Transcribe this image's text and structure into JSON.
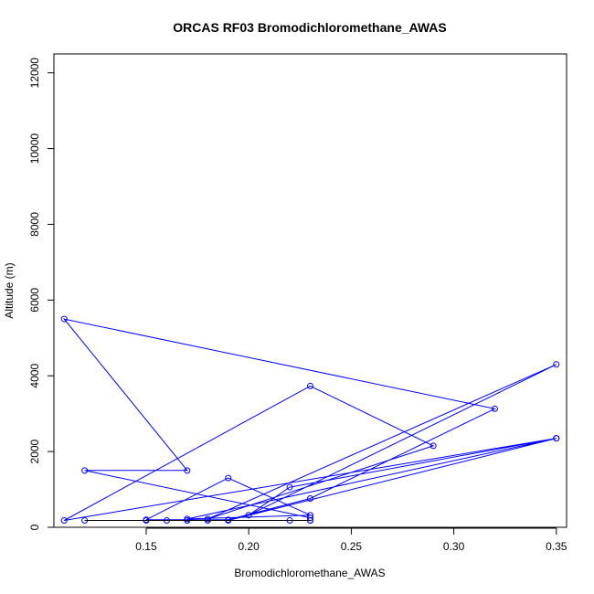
{
  "chart_data": {
    "type": "line",
    "title": "ORCAS RF03 Bromodichloromethane_AWAS",
    "xlabel": "Bromodichloromethane_AWAS",
    "ylabel": "Altitude (m)",
    "xlim": [
      0.105,
      0.355
    ],
    "ylim": [
      0,
      12500
    ],
    "x_ticks": [
      0.15,
      0.2,
      0.25,
      0.3,
      0.35
    ],
    "x_tick_labels": [
      "0.15",
      "0.20",
      "0.25",
      "0.30",
      "0.35"
    ],
    "y_ticks": [
      0,
      2000,
      4000,
      6000,
      8000,
      10000,
      12000
    ],
    "y_tick_labels": [
      "0",
      "2000",
      "4000",
      "6000",
      "8000",
      "10000",
      "12000"
    ],
    "grid": false,
    "series": [
      {
        "color": "#0000ff",
        "marker": "open-circle",
        "points": [
          {
            "x": 0.23,
            "y": 180
          },
          {
            "x": 0.22,
            "y": 180
          },
          {
            "x": 0.23,
            "y": 180
          },
          {
            "x": 0.12,
            "y": 180
          },
          {
            "x": 0.15,
            "y": 180
          },
          {
            "x": 0.16,
            "y": 180
          },
          {
            "x": 0.17,
            "y": 180
          },
          {
            "x": 0.18,
            "y": 180
          },
          {
            "x": 0.19,
            "y": 180
          },
          {
            "x": 0.35,
            "y": 2350
          },
          {
            "x": 0.11,
            "y": 180
          },
          {
            "x": 0.23,
            "y": 3730
          },
          {
            "x": 0.29,
            "y": 2150
          },
          {
            "x": 0.18,
            "y": 220
          },
          {
            "x": 0.35,
            "y": 4300
          },
          {
            "x": 0.2,
            "y": 320
          },
          {
            "x": 0.22,
            "y": 1060
          },
          {
            "x": 0.35,
            "y": 2350
          },
          {
            "x": 0.17,
            "y": 220
          },
          {
            "x": 0.23,
            "y": 320
          },
          {
            "x": 0.19,
            "y": 1300
          },
          {
            "x": 0.15,
            "y": 200
          },
          {
            "x": 0.19,
            "y": 200
          },
          {
            "x": 0.23,
            "y": 760
          },
          {
            "x": 0.32,
            "y": 3130
          },
          {
            "x": 0.11,
            "y": 5500
          },
          {
            "x": 0.17,
            "y": 1500
          },
          {
            "x": 0.12,
            "y": 1500
          },
          {
            "x": 0.23,
            "y": 250
          }
        ]
      }
    ],
    "baseline_segment": {
      "color": "#000000",
      "x": [
        0.12,
        0.23
      ],
      "y": 180
    }
  }
}
